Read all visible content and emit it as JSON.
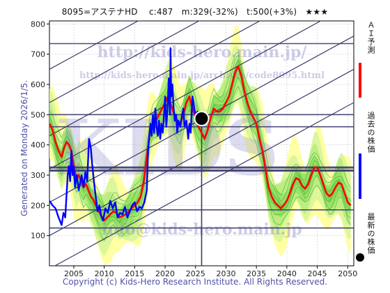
{
  "header": {
    "title": "8095=アステナHD　 c:487　m:329(-32%)　t:500(+3%)　★★★"
  },
  "footer": {
    "copyright": "Copyright (c) Kids-Hero Research Institute. All Rights Reserved."
  },
  "side": {
    "generated": "Generated on Monday 2026/1/5."
  },
  "watermarks": {
    "url1": "http://kids-hero.main.jp/",
    "url2": "http://kids-hero.main.jp/archives/code8095.html",
    "big": "KIDS",
    "mail": "info@kids-hero.main.jp"
  },
  "legend": {
    "ai_label": "ＡＩ予測",
    "past_label": "過去の株価",
    "latest_label": "最新の株価",
    "ai_color": "#ff0000",
    "past_color": "#0000ff",
    "latest_color": "#000000"
  },
  "colors": {
    "band_green": "#90e060",
    "band_yellow": "#ffff99",
    "trend_line": "#3a3a6a",
    "grid": "#c8c8c8"
  },
  "chart_data": {
    "type": "line",
    "xlim": [
      2001,
      2051
    ],
    "ylim": [
      0,
      810
    ],
    "x_ticks": [
      2005,
      2010,
      2015,
      2020,
      2025,
      2030,
      2035,
      2040,
      2045,
      2050
    ],
    "y_ticks": [
      100,
      200,
      300,
      400,
      500,
      600,
      700,
      800
    ],
    "horizontal_levels": [
      735,
      500,
      460,
      325,
      315,
      185,
      125
    ],
    "current": {
      "x": 2026.0,
      "y": 487
    },
    "series": [
      {
        "name": "過去の株価",
        "color": "#0000ff",
        "points": [
          [
            2001.0,
            215
          ],
          [
            2001.5,
            200
          ],
          [
            2002.0,
            190
          ],
          [
            2002.5,
            160
          ],
          [
            2003.0,
            135
          ],
          [
            2003.3,
            175
          ],
          [
            2003.6,
            160
          ],
          [
            2004.0,
            300
          ],
          [
            2004.2,
            330
          ],
          [
            2004.4,
            280
          ],
          [
            2004.6,
            380
          ],
          [
            2004.8,
            300
          ],
          [
            2005.0,
            330
          ],
          [
            2005.2,
            260
          ],
          [
            2005.5,
            300
          ],
          [
            2005.8,
            250
          ],
          [
            2006.0,
            270
          ],
          [
            2006.3,
            300
          ],
          [
            2006.6,
            260
          ],
          [
            2006.9,
            310
          ],
          [
            2007.2,
            280
          ],
          [
            2007.5,
            420
          ],
          [
            2007.8,
            390
          ],
          [
            2008.0,
            340
          ],
          [
            2008.3,
            280
          ],
          [
            2008.6,
            230
          ],
          [
            2008.9,
            180
          ],
          [
            2009.2,
            200
          ],
          [
            2009.5,
            165
          ],
          [
            2009.8,
            150
          ],
          [
            2010.2,
            190
          ],
          [
            2010.6,
            175
          ],
          [
            2011.0,
            215
          ],
          [
            2011.4,
            190
          ],
          [
            2011.8,
            210
          ],
          [
            2012.2,
            160
          ],
          [
            2012.6,
            175
          ],
          [
            2013.0,
            170
          ],
          [
            2013.4,
            195
          ],
          [
            2013.8,
            160
          ],
          [
            2014.2,
            180
          ],
          [
            2014.6,
            200
          ],
          [
            2015.0,
            210
          ],
          [
            2015.4,
            180
          ],
          [
            2015.8,
            195
          ],
          [
            2016.2,
            190
          ],
          [
            2016.6,
            210
          ],
          [
            2017.0,
            250
          ],
          [
            2017.2,
            380
          ],
          [
            2017.4,
            430
          ],
          [
            2017.6,
            470
          ],
          [
            2017.8,
            430
          ],
          [
            2018.0,
            500
          ],
          [
            2018.2,
            440
          ],
          [
            2018.4,
            520
          ],
          [
            2018.6,
            460
          ],
          [
            2018.8,
            430
          ],
          [
            2019.0,
            480
          ],
          [
            2019.2,
            420
          ],
          [
            2019.4,
            470
          ],
          [
            2019.6,
            440
          ],
          [
            2019.8,
            490
          ],
          [
            2020.0,
            560
          ],
          [
            2020.2,
            460
          ],
          [
            2020.4,
            520
          ],
          [
            2020.6,
            620
          ],
          [
            2020.8,
            500
          ],
          [
            2020.9,
            720
          ],
          [
            2021.0,
            560
          ],
          [
            2021.2,
            600
          ],
          [
            2021.4,
            520
          ],
          [
            2021.6,
            480
          ],
          [
            2021.8,
            500
          ],
          [
            2022.0,
            440
          ],
          [
            2022.2,
            480
          ],
          [
            2022.5,
            460
          ],
          [
            2022.8,
            500
          ],
          [
            2023.0,
            520
          ],
          [
            2023.2,
            460
          ],
          [
            2023.5,
            480
          ],
          [
            2023.8,
            420
          ],
          [
            2024.0,
            470
          ],
          [
            2024.2,
            440
          ],
          [
            2024.5,
            560
          ],
          [
            2024.8,
            520
          ],
          [
            2025.0,
            500
          ],
          [
            2025.3,
            510
          ],
          [
            2025.6,
            480
          ],
          [
            2026.0,
            487
          ]
        ]
      },
      {
        "name": "ＡＩ予測",
        "color": "#ff0000",
        "points": [
          [
            2001.0,
            470
          ],
          [
            2001.5,
            450
          ],
          [
            2002.0,
            410
          ],
          [
            2002.5,
            380
          ],
          [
            2003.0,
            360
          ],
          [
            2003.4,
            390
          ],
          [
            2003.8,
            410
          ],
          [
            2004.2,
            400
          ],
          [
            2004.6,
            380
          ],
          [
            2005.0,
            330
          ],
          [
            2005.4,
            290
          ],
          [
            2005.8,
            300
          ],
          [
            2006.2,
            280
          ],
          [
            2006.6,
            260
          ],
          [
            2007.0,
            270
          ],
          [
            2007.4,
            250
          ],
          [
            2007.8,
            230
          ],
          [
            2008.2,
            220
          ],
          [
            2008.6,
            200
          ],
          [
            2009.0,
            185
          ],
          [
            2009.5,
            165
          ],
          [
            2010.0,
            150
          ],
          [
            2010.5,
            160
          ],
          [
            2011.0,
            170
          ],
          [
            2011.5,
            180
          ],
          [
            2012.0,
            175
          ],
          [
            2012.5,
            160
          ],
          [
            2013.0,
            165
          ],
          [
            2013.5,
            170
          ],
          [
            2014.0,
            180
          ],
          [
            2014.5,
            190
          ],
          [
            2015.0,
            200
          ],
          [
            2015.5,
            210
          ],
          [
            2016.0,
            230
          ],
          [
            2016.5,
            280
          ],
          [
            2017.0,
            360
          ],
          [
            2017.5,
            440
          ],
          [
            2018.0,
            470
          ],
          [
            2018.5,
            480
          ],
          [
            2019.0,
            500
          ],
          [
            2019.5,
            520
          ],
          [
            2020.0,
            540
          ],
          [
            2020.5,
            560
          ],
          [
            2021.0,
            530
          ],
          [
            2021.5,
            500
          ],
          [
            2022.0,
            480
          ],
          [
            2022.5,
            470
          ],
          [
            2023.0,
            500
          ],
          [
            2023.5,
            540
          ],
          [
            2024.0,
            560
          ],
          [
            2024.5,
            520
          ],
          [
            2025.0,
            490
          ],
          [
            2025.5,
            460
          ],
          [
            2026.0,
            440
          ],
          [
            2026.5,
            420
          ],
          [
            2027.0,
            450
          ],
          [
            2027.5,
            490
          ],
          [
            2028.0,
            520
          ],
          [
            2028.5,
            510
          ],
          [
            2029.0,
            510
          ],
          [
            2029.5,
            520
          ],
          [
            2030.0,
            540
          ],
          [
            2030.5,
            560
          ],
          [
            2031.0,
            600
          ],
          [
            2031.5,
            640
          ],
          [
            2032.0,
            660
          ],
          [
            2032.5,
            630
          ],
          [
            2033.0,
            580
          ],
          [
            2033.5,
            540
          ],
          [
            2034.0,
            510
          ],
          [
            2034.5,
            490
          ],
          [
            2035.0,
            470
          ],
          [
            2035.5,
            420
          ],
          [
            2036.0,
            380
          ],
          [
            2036.5,
            320
          ],
          [
            2037.0,
            260
          ],
          [
            2037.5,
            230
          ],
          [
            2038.0,
            210
          ],
          [
            2038.5,
            200
          ],
          [
            2039.0,
            190
          ],
          [
            2039.5,
            200
          ],
          [
            2040.0,
            215
          ],
          [
            2040.5,
            240
          ],
          [
            2041.0,
            270
          ],
          [
            2041.5,
            290
          ],
          [
            2042.0,
            285
          ],
          [
            2042.5,
            265
          ],
          [
            2043.0,
            255
          ],
          [
            2043.5,
            270
          ],
          [
            2044.0,
            300
          ],
          [
            2044.5,
            325
          ],
          [
            2045.0,
            325
          ],
          [
            2045.5,
            300
          ],
          [
            2046.0,
            270
          ],
          [
            2046.5,
            240
          ],
          [
            2047.0,
            230
          ],
          [
            2047.5,
            240
          ],
          [
            2048.0,
            260
          ],
          [
            2048.5,
            275
          ],
          [
            2049.0,
            270
          ],
          [
            2049.5,
            240
          ],
          [
            2050.0,
            210
          ],
          [
            2050.5,
            200
          ]
        ]
      }
    ]
  }
}
